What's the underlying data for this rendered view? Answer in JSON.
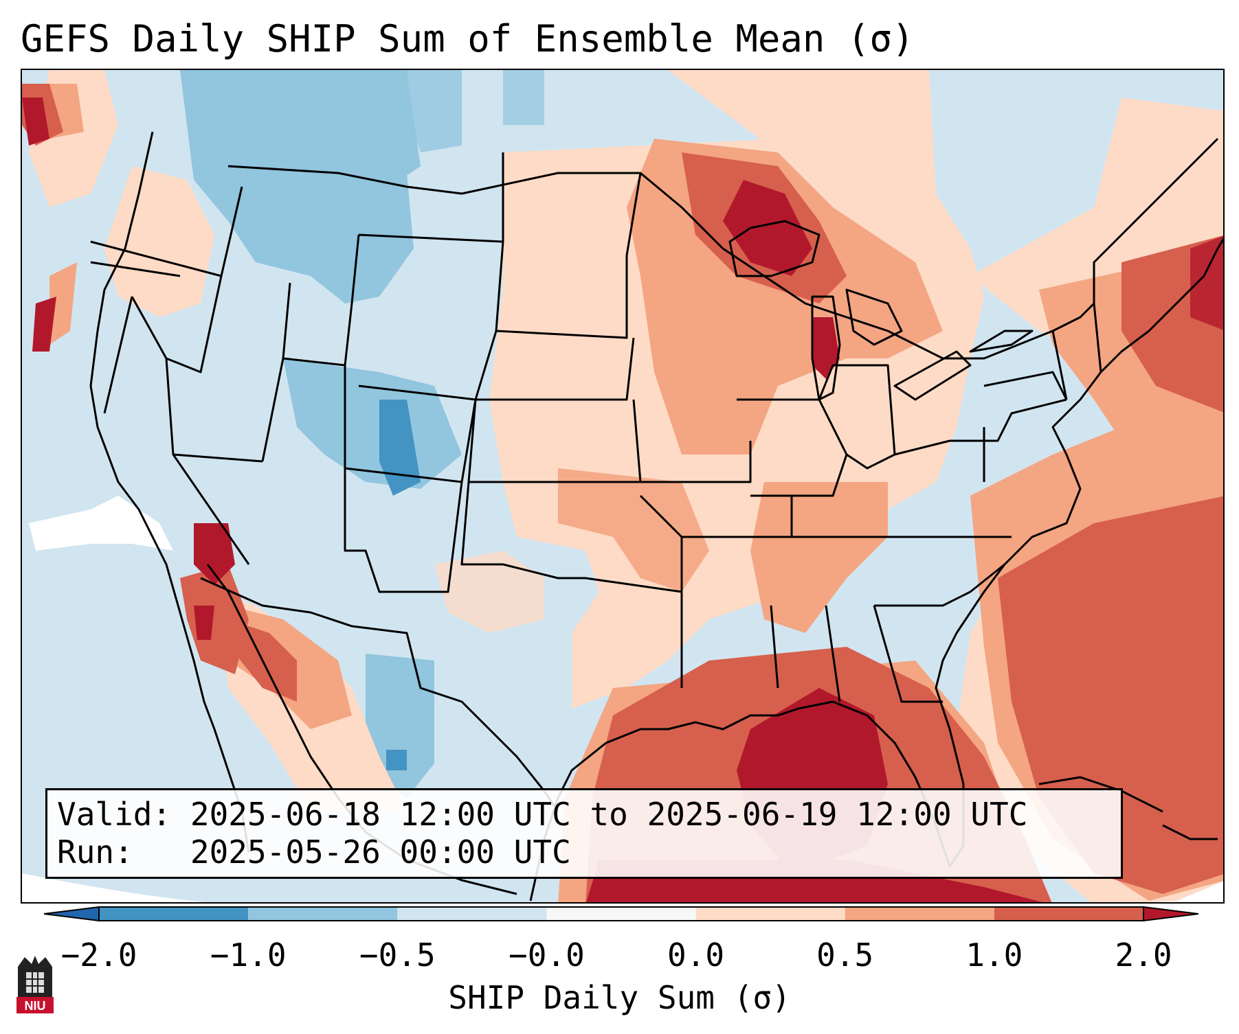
{
  "title": "GEFS Daily SHIP Sum of Ensemble Mean (σ)",
  "info_box": {
    "valid_label": "Valid:",
    "valid_value": "2025-06-18 12:00 UTC to 2025-06-19 12:00 UTC",
    "run_label": "Run:",
    "run_value": "2025-05-26 00:00 UTC"
  },
  "colorbar": {
    "label": "SHIP Daily Sum (σ)",
    "ticks": [
      "−2.0",
      "−1.0",
      "−0.5",
      "−0.0",
      "0.0",
      "0.5",
      "1.0",
      "2.0"
    ],
    "bins": [
      {
        "range": "< -2.0",
        "color": "#2166ac"
      },
      {
        "range": "-2.0 to -1.0",
        "color": "#4393c3"
      },
      {
        "range": "-1.0 to -0.5",
        "color": "#92c5de"
      },
      {
        "range": "-0.5 to -0.0",
        "color": "#d1e5f0"
      },
      {
        "range": "-0.0 to 0.0",
        "color": "#f7f7f7"
      },
      {
        "range": "0.0 to 0.5",
        "color": "#fddbc7"
      },
      {
        "range": "0.5 to 1.0",
        "color": "#f4a582"
      },
      {
        "range": "1.0 to 2.0",
        "color": "#d6604d"
      },
      {
        "range": "> 2.0",
        "color": "#b2182b"
      }
    ]
  },
  "logo": {
    "text": "NIU"
  }
}
